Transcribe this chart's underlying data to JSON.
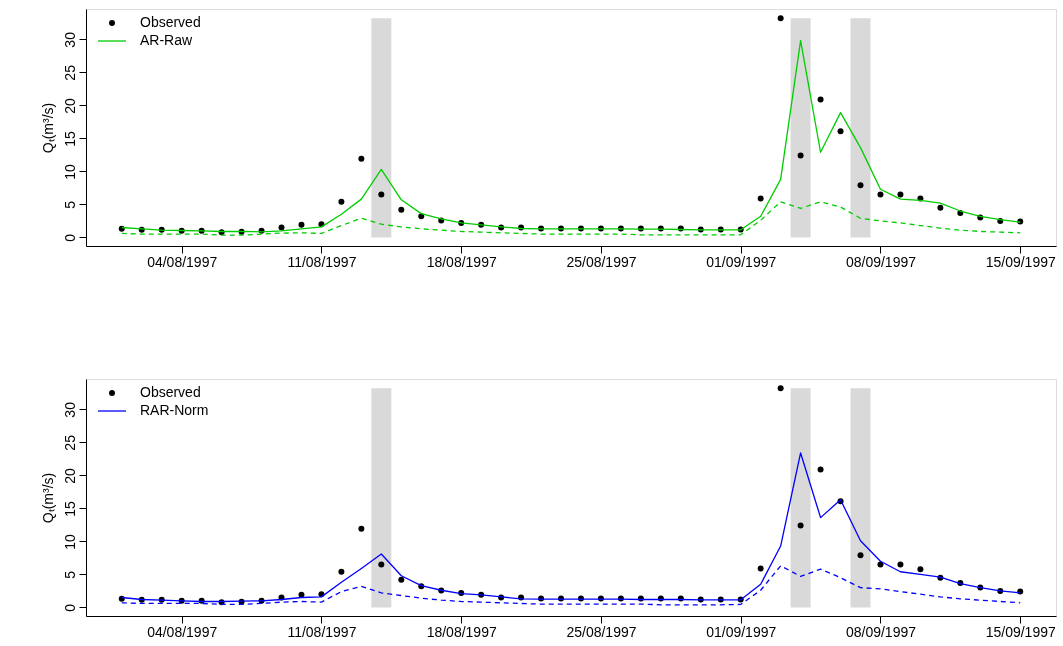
{
  "chart_data": [
    {
      "type": "line",
      "ylabel": "Qₜ(m³/s)",
      "legend": "top left",
      "grid": false,
      "x": [
        "1997-08-01",
        "1997-08-02",
        "1997-08-03",
        "1997-08-04",
        "1997-08-05",
        "1997-08-06",
        "1997-08-07",
        "1997-08-08",
        "1997-08-09",
        "1997-08-10",
        "1997-08-11",
        "1997-08-12",
        "1997-08-13",
        "1997-08-14",
        "1997-08-15",
        "1997-08-16",
        "1997-08-17",
        "1997-08-18",
        "1997-08-19",
        "1997-08-20",
        "1997-08-21",
        "1997-08-22",
        "1997-08-23",
        "1997-08-24",
        "1997-08-25",
        "1997-08-26",
        "1997-08-27",
        "1997-08-28",
        "1997-08-29",
        "1997-08-30",
        "1997-08-31",
        "1997-09-01",
        "1997-09-02",
        "1997-09-03",
        "1997-09-04",
        "1997-09-05",
        "1997-09-06",
        "1997-09-07",
        "1997-09-08",
        "1997-09-09",
        "1997-09-10",
        "1997-09-11",
        "1997-09-12",
        "1997-09-13",
        "1997-09-14",
        "1997-09-15"
      ],
      "xlim": [
        "1997-07-30T05:00",
        "1997-09-16T19:00"
      ],
      "xticks": [
        {
          "value": "1997-08-04",
          "label": "04/08/1997"
        },
        {
          "value": "1997-08-11",
          "label": "11/08/1997"
        },
        {
          "value": "1997-08-18",
          "label": "18/08/1997"
        },
        {
          "value": "1997-08-25",
          "label": "25/08/1997"
        },
        {
          "value": "1997-09-01",
          "label": "01/09/1997"
        },
        {
          "value": "1997-09-08",
          "label": "08/09/1997"
        },
        {
          "value": "1997-09-15",
          "label": "15/09/1997"
        }
      ],
      "ylim": [
        -1.3,
        34.6
      ],
      "yticks": [
        0,
        5,
        10,
        15,
        20,
        25,
        30
      ],
      "bands": [
        {
          "axis": "x",
          "from": "1997-08-13T12:00",
          "to": "1997-08-14T12:00",
          "color": "#d9d9d9"
        },
        {
          "axis": "x",
          "from": "1997-09-03T12:00",
          "to": "1997-09-04T12:00",
          "color": "#d9d9d9"
        },
        {
          "axis": "x",
          "from": "1997-09-06T12:00",
          "to": "1997-09-07T12:00",
          "color": "#d9d9d9"
        }
      ],
      "series": [
        {
          "name": "Observed",
          "type": "scatter",
          "marker": "circle",
          "color": "#000000",
          "values": [
            1.3,
            1.15,
            1.15,
            1.0,
            1.0,
            0.8,
            0.85,
            1.0,
            1.5,
            1.9,
            2.0,
            5.4,
            11.9,
            6.5,
            4.2,
            3.2,
            2.55,
            2.2,
            1.9,
            1.5,
            1.5,
            1.35,
            1.35,
            1.35,
            1.35,
            1.35,
            1.35,
            1.35,
            1.35,
            1.2,
            1.2,
            1.2,
            5.9,
            33.2,
            12.4,
            20.9,
            16.1,
            7.9,
            6.5,
            6.5,
            5.9,
            4.5,
            3.7,
            3.0,
            2.5,
            2.4
          ]
        },
        {
          "name": "AR-Raw",
          "line_style": "solid",
          "color": "#00cd00",
          "values": [
            1.5,
            1.3,
            1.1,
            1.05,
            1.0,
            0.9,
            0.9,
            0.85,
            1.0,
            1.3,
            1.6,
            3.5,
            5.8,
            10.3,
            5.7,
            3.6,
            2.8,
            2.2,
            1.9,
            1.6,
            1.35,
            1.3,
            1.3,
            1.3,
            1.3,
            1.3,
            1.25,
            1.25,
            1.2,
            1.15,
            1.15,
            1.15,
            3.2,
            8.8,
            29.8,
            12.9,
            18.9,
            13.6,
            7.3,
            5.8,
            5.6,
            5.2,
            4.0,
            3.2,
            2.7,
            2.3
          ]
        },
        {
          "line_style": "dashed",
          "color": "#00cd00",
          "values": [
            0.6,
            0.5,
            0.5,
            0.5,
            0.5,
            0.35,
            0.35,
            0.5,
            0.65,
            0.7,
            0.6,
            1.8,
            2.9,
            2.0,
            1.6,
            1.3,
            1.1,
            0.9,
            0.8,
            0.7,
            0.6,
            0.5,
            0.5,
            0.5,
            0.5,
            0.5,
            0.4,
            0.4,
            0.4,
            0.4,
            0.4,
            0.4,
            2.6,
            5.4,
            4.4,
            5.4,
            4.6,
            2.9,
            2.5,
            2.2,
            1.8,
            1.4,
            1.1,
            0.9,
            0.8,
            0.7
          ]
        }
      ]
    },
    {
      "type": "line",
      "ylabel": "Qₜ(m³/s)",
      "legend": "top left",
      "grid": false,
      "x": [
        "1997-08-01",
        "1997-08-02",
        "1997-08-03",
        "1997-08-04",
        "1997-08-05",
        "1997-08-06",
        "1997-08-07",
        "1997-08-08",
        "1997-08-09",
        "1997-08-10",
        "1997-08-11",
        "1997-08-12",
        "1997-08-13",
        "1997-08-14",
        "1997-08-15",
        "1997-08-16",
        "1997-08-17",
        "1997-08-18",
        "1997-08-19",
        "1997-08-20",
        "1997-08-21",
        "1997-08-22",
        "1997-08-23",
        "1997-08-24",
        "1997-08-25",
        "1997-08-26",
        "1997-08-27",
        "1997-08-28",
        "1997-08-29",
        "1997-08-30",
        "1997-08-31",
        "1997-09-01",
        "1997-09-02",
        "1997-09-03",
        "1997-09-04",
        "1997-09-05",
        "1997-09-06",
        "1997-09-07",
        "1997-09-08",
        "1997-09-09",
        "1997-09-10",
        "1997-09-11",
        "1997-09-12",
        "1997-09-13",
        "1997-09-14",
        "1997-09-15"
      ],
      "xlim": [
        "1997-07-30T05:00",
        "1997-09-16T19:00"
      ],
      "xticks": [
        {
          "value": "1997-08-04",
          "label": "04/08/1997"
        },
        {
          "value": "1997-08-11",
          "label": "11/08/1997"
        },
        {
          "value": "1997-08-18",
          "label": "18/08/1997"
        },
        {
          "value": "1997-08-25",
          "label": "25/08/1997"
        },
        {
          "value": "1997-09-01",
          "label": "01/09/1997"
        },
        {
          "value": "1997-09-08",
          "label": "08/09/1997"
        },
        {
          "value": "1997-09-15",
          "label": "15/09/1997"
        }
      ],
      "ylim": [
        -1.3,
        34.6
      ],
      "yticks": [
        0,
        5,
        10,
        15,
        20,
        25,
        30
      ],
      "bands": [
        {
          "axis": "x",
          "from": "1997-08-13T12:00",
          "to": "1997-08-14T12:00",
          "color": "#d9d9d9"
        },
        {
          "axis": "x",
          "from": "1997-09-03T12:00",
          "to": "1997-09-04T12:00",
          "color": "#d9d9d9"
        },
        {
          "axis": "x",
          "from": "1997-09-06T12:00",
          "to": "1997-09-07T12:00",
          "color": "#d9d9d9"
        }
      ],
      "series": [
        {
          "name": "Observed",
          "type": "scatter",
          "marker": "circle",
          "color": "#000000",
          "values": [
            1.3,
            1.15,
            1.15,
            1.0,
            1.0,
            0.8,
            0.85,
            1.0,
            1.5,
            1.9,
            2.0,
            5.4,
            11.9,
            6.5,
            4.2,
            3.2,
            2.55,
            2.2,
            1.9,
            1.5,
            1.5,
            1.35,
            1.35,
            1.35,
            1.35,
            1.35,
            1.35,
            1.35,
            1.35,
            1.2,
            1.2,
            1.2,
            5.9,
            33.2,
            12.4,
            20.9,
            16.1,
            7.9,
            6.5,
            6.5,
            5.8,
            4.5,
            3.7,
            3.0,
            2.5,
            2.4
          ]
        },
        {
          "name": "RAR-Norm",
          "line_style": "solid",
          "color": "#0000ff",
          "values": [
            1.5,
            1.2,
            1.1,
            1.0,
            0.9,
            0.9,
            0.95,
            1.0,
            1.2,
            1.5,
            1.6,
            3.8,
            5.9,
            8.1,
            4.8,
            3.3,
            2.6,
            2.1,
            1.9,
            1.6,
            1.3,
            1.25,
            1.25,
            1.25,
            1.25,
            1.25,
            1.2,
            1.2,
            1.2,
            1.15,
            1.15,
            1.15,
            3.5,
            9.3,
            23.4,
            13.6,
            16.3,
            10.1,
            7.0,
            5.4,
            5.0,
            4.6,
            3.6,
            3.0,
            2.5,
            2.2
          ]
        },
        {
          "line_style": "dashed",
          "color": "#0000ff",
          "values": [
            0.7,
            0.6,
            0.6,
            0.6,
            0.6,
            0.45,
            0.45,
            0.6,
            0.8,
            0.9,
            0.8,
            2.4,
            3.2,
            2.2,
            1.8,
            1.4,
            1.1,
            0.9,
            0.8,
            0.7,
            0.6,
            0.5,
            0.5,
            0.5,
            0.5,
            0.5,
            0.5,
            0.4,
            0.4,
            0.4,
            0.4,
            0.45,
            2.6,
            6.3,
            4.7,
            5.8,
            4.5,
            3.0,
            2.8,
            2.4,
            2.0,
            1.6,
            1.3,
            1.1,
            0.9,
            0.7
          ]
        }
      ]
    }
  ]
}
